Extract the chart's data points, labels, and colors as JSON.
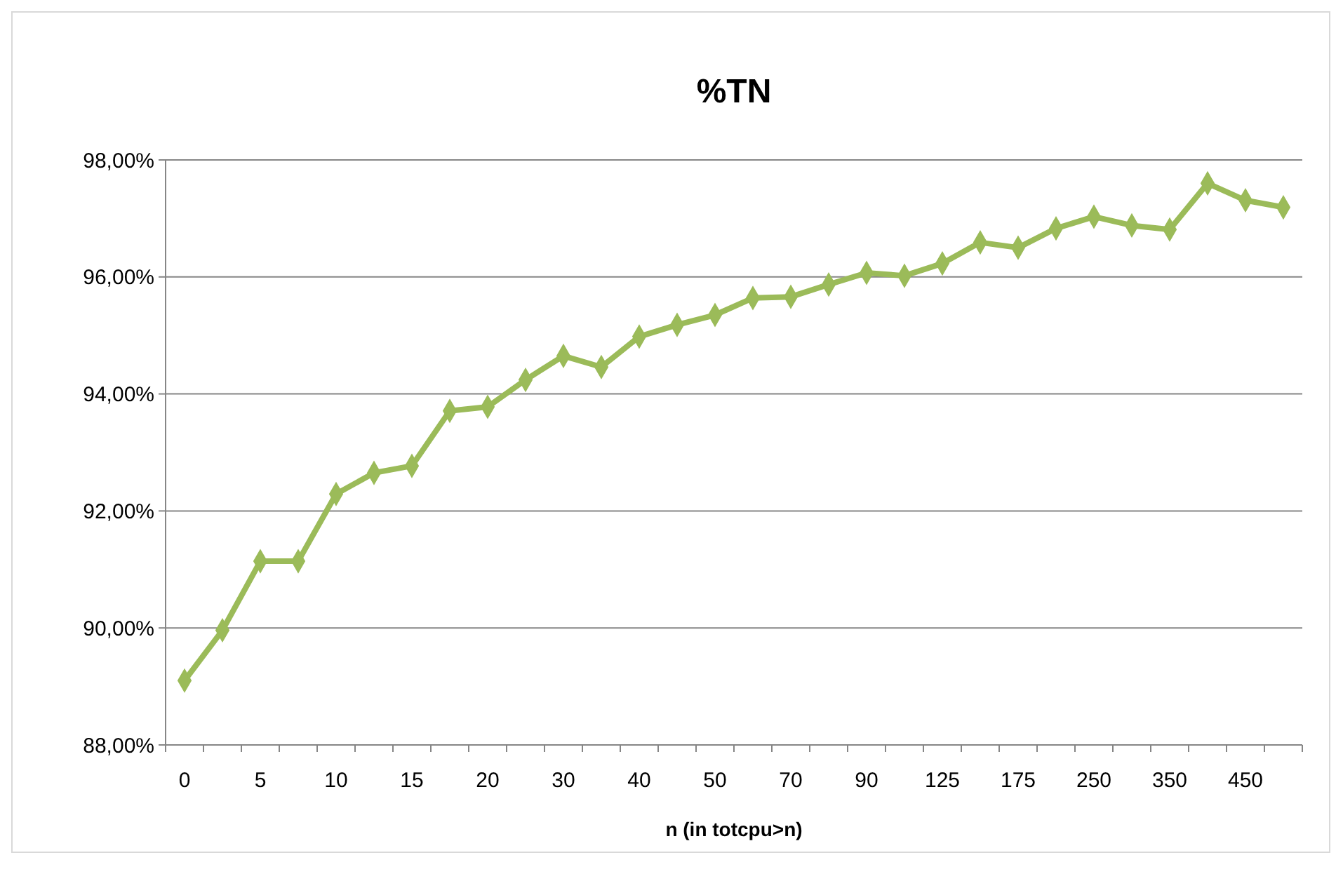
{
  "chart_data": {
    "type": "line",
    "title": "%TN",
    "xlabel": "n (in totcpu>n)",
    "categories": [
      "0",
      null,
      "5",
      null,
      "10",
      null,
      "15",
      null,
      "20",
      null,
      "30",
      null,
      "40",
      null,
      "50",
      null,
      "70",
      null,
      "90",
      null,
      "125",
      null,
      "175",
      null,
      "250",
      null,
      "350",
      null,
      "450",
      null
    ],
    "series": [
      {
        "color": "#9bbb59",
        "values": [
          89.1,
          89.96,
          91.14,
          91.14,
          92.29,
          92.65,
          92.77,
          93.71,
          93.78,
          94.24,
          94.65,
          94.46,
          94.98,
          95.18,
          95.35,
          95.64,
          95.66,
          95.87,
          96.07,
          96.02,
          96.23,
          96.59,
          96.5,
          96.83,
          97.03,
          96.88,
          96.81,
          97.6,
          97.31,
          97.19
        ]
      }
    ],
    "ylim": [
      88,
      98
    ],
    "yticks": [
      {
        "value": 88,
        "label": "88,00%"
      },
      {
        "value": 90,
        "label": "90,00%"
      },
      {
        "value": 92,
        "label": "92,00%"
      },
      {
        "value": 94,
        "label": "94,00%"
      },
      {
        "value": 96,
        "label": "96,00%"
      },
      {
        "value": 98,
        "label": "98,00%"
      }
    ],
    "grid": "y",
    "marker": "diamond",
    "line_style": "solid"
  }
}
